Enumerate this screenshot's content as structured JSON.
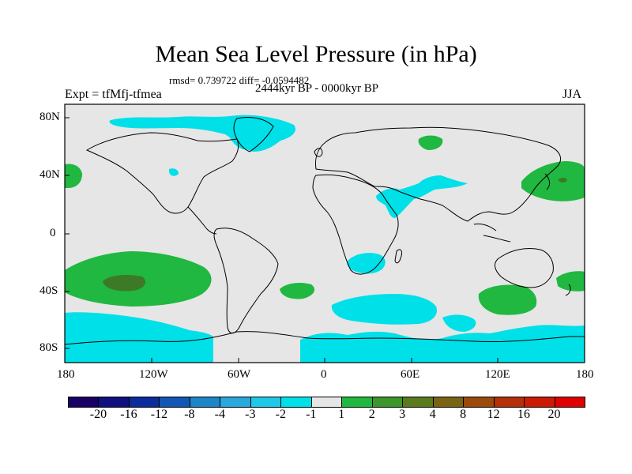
{
  "title": "Mean Sea Level Pressure (in hPa)",
  "stats_text": "rmsd= 0.739722 diff= -0.0594482",
  "experiment": "Expt = tfMfj-tfmea",
  "period": "2444kyr BP - 0000kyr BP",
  "season": "JJA",
  "lat_labels": [
    "80N",
    "40N",
    "0",
    "40S",
    "80S"
  ],
  "lon_labels": [
    "180",
    "120W",
    "60W",
    "0",
    "60E",
    "120E",
    "180"
  ],
  "colorbar": {
    "colors": [
      "#1a0064",
      "#101080",
      "#0b2d9c",
      "#1456b4",
      "#1e86c8",
      "#28a8dc",
      "#20c8e8",
      "#00e0e8",
      "#e6e6e6",
      "#20b840",
      "#3c962a",
      "#5a7a1e",
      "#7a6414",
      "#9a4a0a",
      "#b43008",
      "#cc1a04",
      "#e00000"
    ],
    "labels": [
      "-20",
      "-16",
      "-12",
      "-8",
      "-4",
      "-3",
      "-2",
      "-1",
      "1",
      "2",
      "3",
      "4",
      "8",
      "12",
      "16",
      "20"
    ]
  },
  "palette": {
    "background": "#e6e6e6",
    "negative": "#00e0e8",
    "positive": "#20b840",
    "strong_positive": "#3c7a28",
    "coast": "#000000"
  }
}
